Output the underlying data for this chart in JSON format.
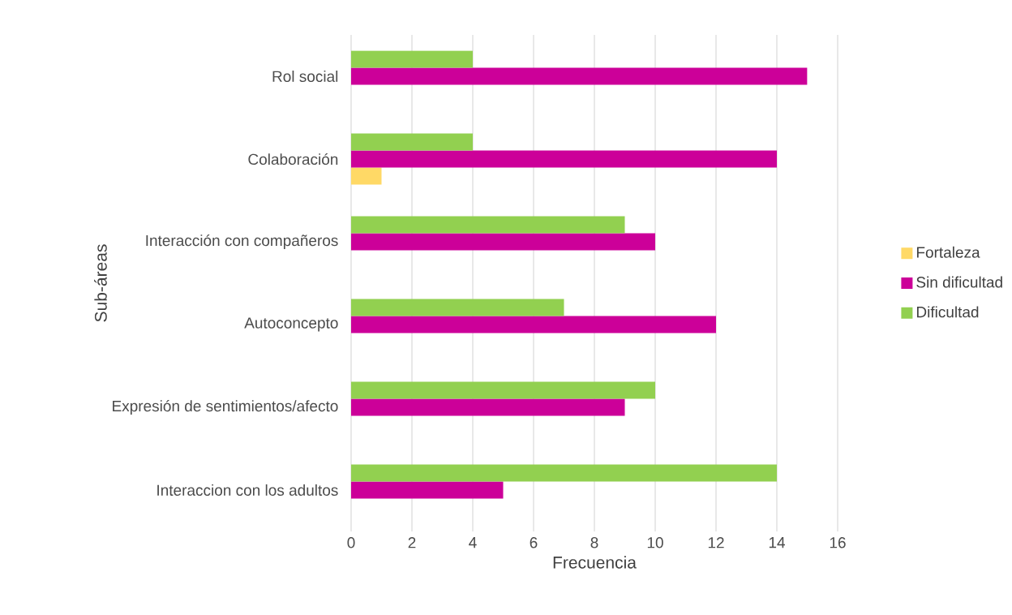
{
  "chart_data": {
    "type": "bar",
    "orientation": "horizontal",
    "xlabel": "Frecuencia",
    "ylabel": "Sub-áreas",
    "categories": [
      "Rol social",
      "Colaboración",
      "Interacción con compañeros",
      "Autoconcepto",
      "Expresión de sentimientos/afecto",
      "Interaccion con los adultos"
    ],
    "series": [
      {
        "name": "Fortaleza",
        "color": "#ffd966",
        "values": [
          null,
          1,
          null,
          null,
          null,
          null
        ]
      },
      {
        "name": "Sin dificultad",
        "color": "#cc0099",
        "values": [
          15,
          14,
          10,
          12,
          9,
          5
        ]
      },
      {
        "name": "Dificultad",
        "color": "#92d050",
        "values": [
          4,
          4,
          9,
          7,
          10,
          14
        ]
      }
    ],
    "xlim": [
      0,
      16
    ],
    "xticks": [
      0,
      2,
      4,
      6,
      8,
      10,
      12,
      14,
      16
    ],
    "grid": "x",
    "legend": "right"
  }
}
